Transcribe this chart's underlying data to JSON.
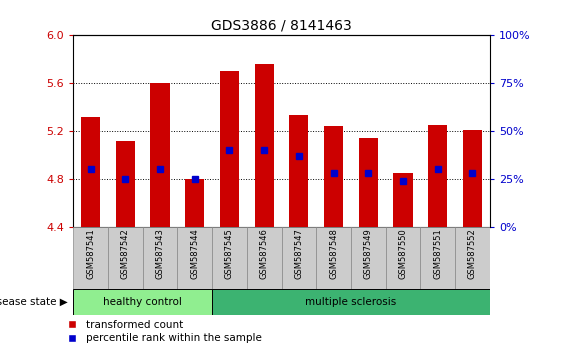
{
  "title": "GDS3886 / 8141463",
  "samples": [
    "GSM587541",
    "GSM587542",
    "GSM587543",
    "GSM587544",
    "GSM587545",
    "GSM587546",
    "GSM587547",
    "GSM587548",
    "GSM587549",
    "GSM587550",
    "GSM587551",
    "GSM587552"
  ],
  "transformed_count": [
    5.32,
    5.12,
    5.6,
    4.8,
    5.7,
    5.76,
    5.33,
    5.24,
    5.14,
    4.85,
    5.25,
    5.21
  ],
  "percentile_rank": [
    30,
    25,
    30,
    25,
    40,
    40,
    37,
    28,
    28,
    24,
    30,
    28
  ],
  "ylim_left": [
    4.4,
    6.0
  ],
  "ylim_right": [
    0,
    100
  ],
  "yticks_left": [
    4.4,
    4.8,
    5.2,
    5.6,
    6.0
  ],
  "yticks_right": [
    0,
    25,
    50,
    75,
    100
  ],
  "bar_color": "#cc0000",
  "dot_color": "#0000cc",
  "bar_bottom": 4.4,
  "group1_label": "healthy control",
  "group2_label": "multiple sclerosis",
  "group1_count": 4,
  "group2_count": 8,
  "group1_color": "#90ee90",
  "group2_color": "#3cb371",
  "disease_state_label": "disease state",
  "legend1_label": "transformed count",
  "legend2_label": "percentile rank within the sample",
  "tick_label_color_left": "#cc0000",
  "tick_label_color_right": "#0000cc",
  "bg_xticklabel": "#cccccc",
  "title_fontsize": 10,
  "axis_fontsize": 8,
  "tick_fontsize": 8,
  "label_fontsize": 7.5
}
